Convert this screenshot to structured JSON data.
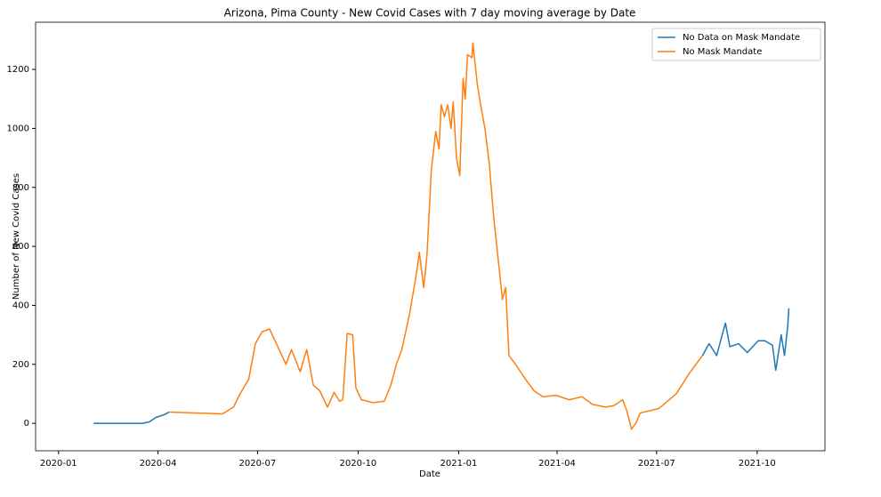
{
  "chart_data": {
    "type": "line",
    "title": "Arizona, Pima County - New Covid Cases with 7 day moving average by Date",
    "x_label": "Date",
    "y_label": "Number of New Covid Cases",
    "xlim": [
      -21,
      701
    ],
    "xticks": [
      {
        "value": 0,
        "label": "2020-01"
      },
      {
        "value": 91,
        "label": "2020-04"
      },
      {
        "value": 182,
        "label": "2020-07"
      },
      {
        "value": 274,
        "label": "2020-10"
      },
      {
        "value": 366,
        "label": "2021-01"
      },
      {
        "value": 456,
        "label": "2021-04"
      },
      {
        "value": 547,
        "label": "2021-07"
      },
      {
        "value": 639,
        "label": "2021-10"
      }
    ],
    "ylim": [
      -93,
      1360
    ],
    "yticks": [
      0,
      200,
      400,
      600,
      800,
      1000,
      1200
    ],
    "legend": "upper right",
    "series": [
      {
        "name": "No Data on Mask Mandate",
        "color": "#1f77b4",
        "x": [
          32,
          52,
          77,
          83,
          89,
          97,
          101,
          null,
          589,
          595,
          602,
          607,
          610,
          614,
          622,
          630,
          640,
          646,
          653,
          656,
          661,
          664,
          667,
          668
        ],
        "values": [
          0,
          0,
          0,
          5,
          20,
          30,
          38,
          null,
          230,
          270,
          230,
          300,
          340,
          260,
          270,
          240,
          280,
          280,
          265,
          180,
          300,
          230,
          330,
          390
        ]
      },
      {
        "name": "No Mask Mandate",
        "color": "#ff7f0e",
        "x": [
          101,
          125,
          150,
          160,
          166,
          174,
          180,
          186,
          193,
          203,
          208,
          213,
          221,
          227,
          233,
          239,
          246,
          252,
          257,
          260,
          264,
          269,
          272,
          277,
          288,
          298,
          304,
          309,
          314,
          321,
          327,
          330,
          334,
          337,
          341,
          345,
          348,
          350,
          353,
          356,
          359,
          361,
          364,
          367,
          370,
          372,
          374,
          378,
          379,
          383,
          387,
          390,
          394,
          398,
          402,
          406,
          409,
          412,
          418,
          427,
          435,
          443,
          455,
          467,
          479,
          488,
          500,
          508,
          516,
          520,
          524,
          528,
          532,
          549,
          565,
          577,
          589
        ],
        "values": [
          38,
          35,
          32,
          55,
          100,
          150,
          270,
          310,
          320,
          240,
          200,
          250,
          175,
          250,
          130,
          110,
          55,
          105,
          75,
          80,
          305,
          300,
          120,
          80,
          70,
          75,
          130,
          200,
          250,
          370,
          500,
          580,
          460,
          570,
          860,
          990,
          930,
          1080,
          1040,
          1080,
          1000,
          1090,
          900,
          840,
          1170,
          1100,
          1250,
          1240,
          1290,
          1150,
          1060,
          1000,
          880,
          700,
          560,
          420,
          460,
          230,
          200,
          150,
          110,
          90,
          95,
          80,
          90,
          65,
          55,
          60,
          80,
          40,
          -20,
          0,
          35,
          50,
          100,
          170,
          230
        ]
      }
    ]
  }
}
